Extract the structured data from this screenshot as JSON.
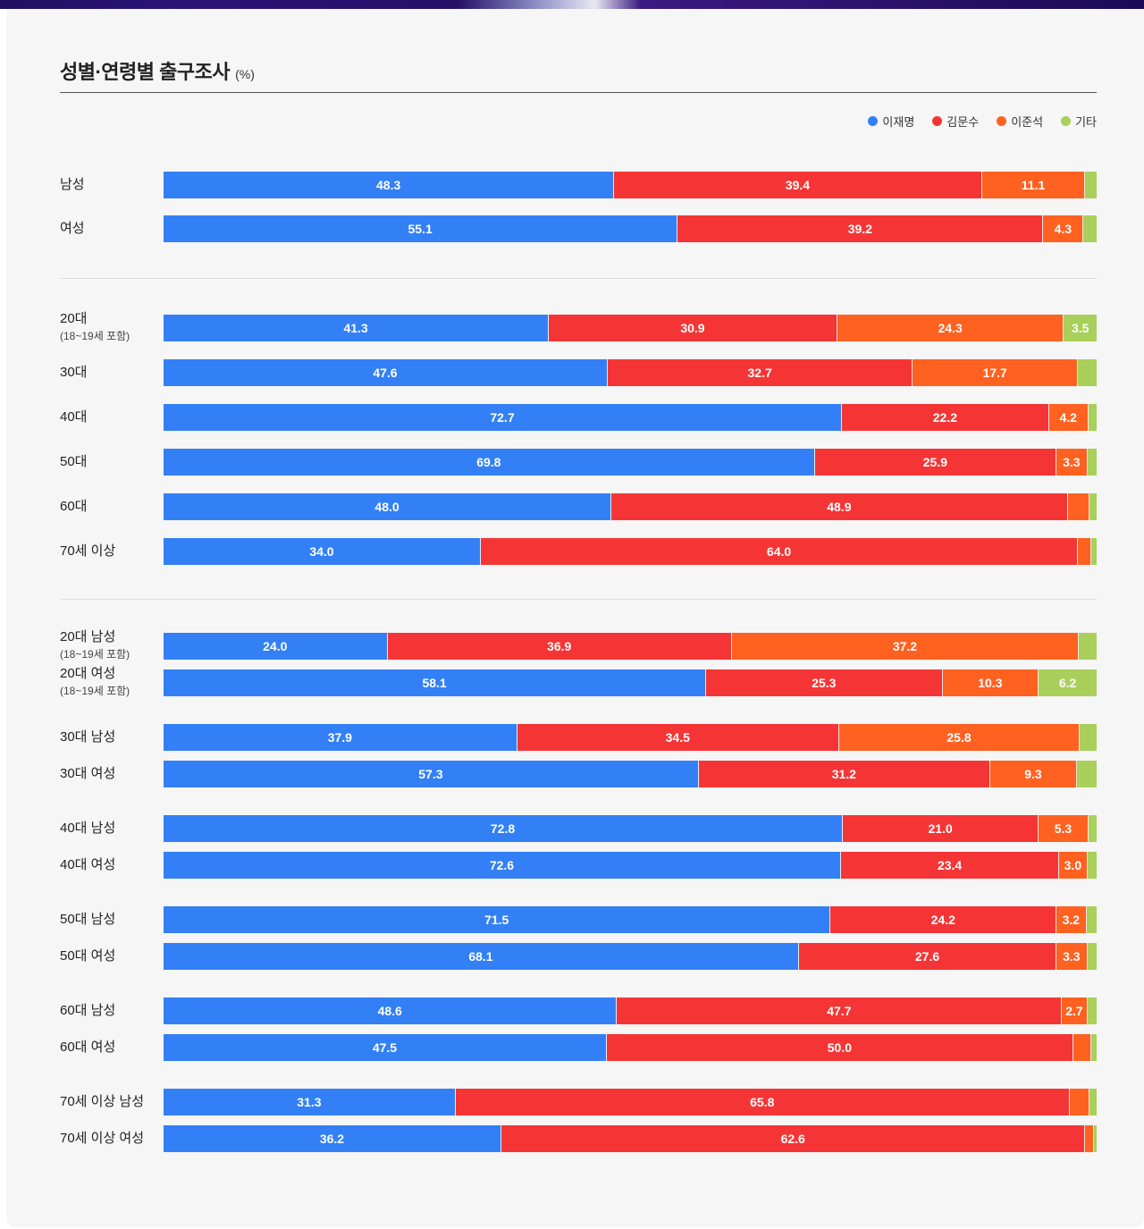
{
  "header": {
    "title": "성별·연령별 출구조사",
    "unit": "(%)"
  },
  "legend": [
    {
      "name": "이재명",
      "color": "#3380f6"
    },
    {
      "name": "김문수",
      "color": "#f53535"
    },
    {
      "name": "이준석",
      "color": "#ff6120"
    },
    {
      "name": "기타",
      "color": "#a8d05a"
    }
  ],
  "chart_data": {
    "type": "bar",
    "orientation": "horizontal",
    "stacked": true,
    "title": "성별·연령별 출구조사",
    "unit": "(%)",
    "legend_position": "top-right",
    "xlim": [
      0,
      100
    ],
    "series_names": [
      "이재명",
      "김문수",
      "이준석",
      "기타"
    ],
    "colors": [
      "#3380f6",
      "#f53535",
      "#ff6120",
      "#a8d05a"
    ],
    "groups": [
      {
        "rows": [
          {
            "label": "남성",
            "values": [
              48.3,
              39.4,
              11.1,
              1.2
            ],
            "labels": [
              "48.3",
              "39.4",
              "11.1",
              ""
            ]
          },
          {
            "label": "여성",
            "values": [
              55.1,
              39.2,
              4.3,
              1.4
            ],
            "labels": [
              "55.1",
              "39.2",
              "4.3",
              ""
            ]
          }
        ]
      },
      {
        "rows": [
          {
            "label": "20대",
            "sublabel": "(18~19세 포함)",
            "values": [
              41.3,
              30.9,
              24.3,
              3.5
            ],
            "labels": [
              "41.3",
              "30.9",
              "24.3",
              "3.5"
            ]
          },
          {
            "label": "30대",
            "values": [
              47.6,
              32.7,
              17.7,
              2.0
            ],
            "labels": [
              "47.6",
              "32.7",
              "17.7",
              ""
            ]
          },
          {
            "label": "40대",
            "values": [
              72.7,
              22.2,
              4.2,
              0.9
            ],
            "labels": [
              "72.7",
              "22.2",
              "4.2",
              ""
            ]
          },
          {
            "label": "50대",
            "values": [
              69.8,
              25.9,
              3.3,
              1.0
            ],
            "labels": [
              "69.8",
              "25.9",
              "3.3",
              ""
            ]
          },
          {
            "label": "60대",
            "values": [
              48.0,
              48.9,
              2.3,
              0.8
            ],
            "labels": [
              "48.0",
              "48.9",
              "",
              ""
            ]
          },
          {
            "label": "70세 이상",
            "values": [
              34.0,
              64.0,
              1.4,
              0.6
            ],
            "labels": [
              "34.0",
              "64.0",
              "",
              ""
            ]
          }
        ]
      },
      {
        "rows": [
          {
            "label": "20대 남성",
            "sublabel": "(18~19세 포함)",
            "values": [
              24.0,
              36.9,
              37.2,
              1.9
            ],
            "labels": [
              "24.0",
              "36.9",
              "37.2",
              ""
            ]
          },
          {
            "label": "20대 여성",
            "sublabel": "(18~19세 포함)",
            "values": [
              58.1,
              25.3,
              10.3,
              6.2
            ],
            "labels": [
              "58.1",
              "25.3",
              "10.3",
              "6.2"
            ]
          },
          {
            "label": "30대 남성",
            "values": [
              37.9,
              34.5,
              25.8,
              1.8
            ],
            "labels": [
              "37.9",
              "34.5",
              "25.8",
              ""
            ]
          },
          {
            "label": "30대 여성",
            "values": [
              57.3,
              31.2,
              9.3,
              2.1
            ],
            "labels": [
              "57.3",
              "31.2",
              "9.3",
              ""
            ]
          },
          {
            "label": "40대 남성",
            "values": [
              72.8,
              21.0,
              5.3,
              0.9
            ],
            "labels": [
              "72.8",
              "21.0",
              "5.3",
              ""
            ]
          },
          {
            "label": "40대 여성",
            "values": [
              72.6,
              23.4,
              3.0,
              1.0
            ],
            "labels": [
              "72.6",
              "23.4",
              "3.0",
              ""
            ]
          },
          {
            "label": "50대 남성",
            "values": [
              71.5,
              24.2,
              3.2,
              1.1
            ],
            "labels": [
              "71.5",
              "24.2",
              "3.2",
              ""
            ]
          },
          {
            "label": "50대 여성",
            "values": [
              68.1,
              27.6,
              3.3,
              1.0
            ],
            "labels": [
              "68.1",
              "27.6",
              "3.3",
              ""
            ]
          },
          {
            "label": "60대 남성",
            "values": [
              48.6,
              47.7,
              2.7,
              1.0
            ],
            "labels": [
              "48.6",
              "47.7",
              "2.7",
              ""
            ]
          },
          {
            "label": "60대 여성",
            "values": [
              47.5,
              50.0,
              1.9,
              0.6
            ],
            "labels": [
              "47.5",
              "50.0",
              "",
              ""
            ]
          },
          {
            "label": "70세 이상 남성",
            "values": [
              31.3,
              65.8,
              2.1,
              0.8
            ],
            "labels": [
              "31.3",
              "65.8",
              "",
              ""
            ]
          },
          {
            "label": "70세 이상 여성",
            "values": [
              36.2,
              62.6,
              0.9,
              0.3
            ],
            "labels": [
              "36.2",
              "62.6",
              "",
              ""
            ]
          }
        ]
      }
    ]
  }
}
